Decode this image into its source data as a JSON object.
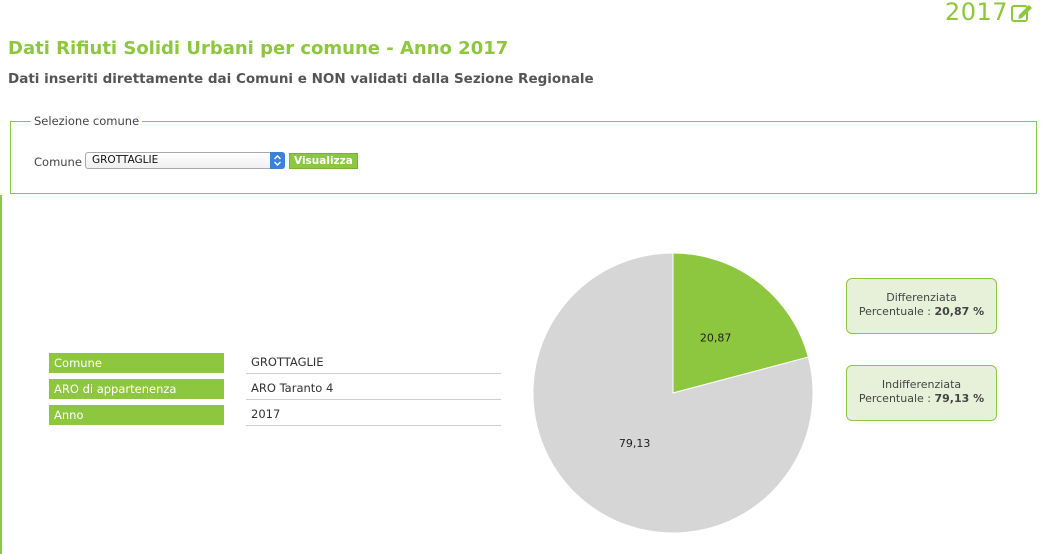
{
  "header": {
    "year": "2017",
    "title": "Dati Rifiuti Solidi Urbani per comune - Anno 2017",
    "subtitle": "Dati inseriti direttamente dai Comuni e NON validati dalla Sezione Regionale"
  },
  "selection": {
    "legend": "Selezione comune",
    "comune_label": "Comune",
    "selected_value": "GROTTAGLIE",
    "button_label": "Visualizza"
  },
  "info": {
    "rows": [
      {
        "key": "Comune",
        "value": "GROTTAGLIE"
      },
      {
        "key": "ARO di appartenenza",
        "value": "ARO Taranto 4"
      },
      {
        "key": "Anno",
        "value": "2017"
      }
    ]
  },
  "chart_data": {
    "type": "pie",
    "categories": [
      "Differenziata",
      "Indifferenziata"
    ],
    "values": [
      20.87,
      79.13
    ],
    "value_labels": [
      "20,87",
      "79,13"
    ],
    "colors": [
      "#8dc63f",
      "#d6d6d6"
    ]
  },
  "legend_boxes": [
    {
      "name": "Differenziata",
      "label": "Percentuale :",
      "value": "20,87 %"
    },
    {
      "name": "Indifferenziata",
      "label": "Percentuale :",
      "value": "79,13 %"
    }
  ],
  "colors": {
    "accent": "#8dc63f"
  },
  "icons": {
    "edit": "edit-icon",
    "select_arrow": "chevron-updown-icon"
  }
}
